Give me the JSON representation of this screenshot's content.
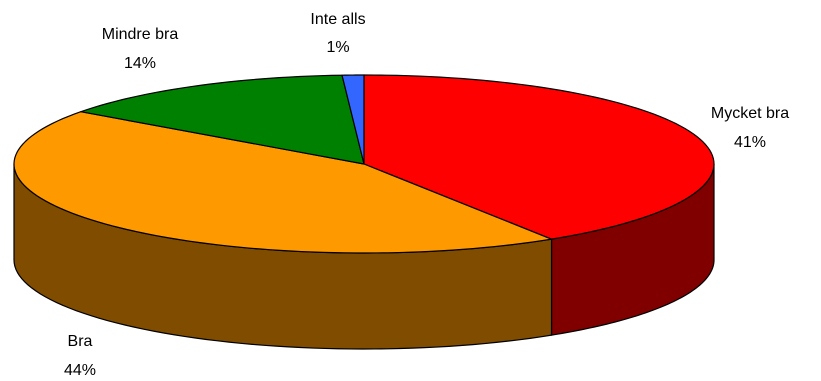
{
  "chart_data": {
    "type": "pie",
    "style": "3d",
    "slices": [
      {
        "label": "Mycket bra",
        "value": 41,
        "value_label": "41%",
        "color": "#FF0000",
        "side_color": "#800000"
      },
      {
        "label": "Bra",
        "value": 44,
        "value_label": "44%",
        "color": "#FF9900",
        "side_color": "#7F4C00"
      },
      {
        "label": "Mindre bra",
        "value": 14,
        "value_label": "14%",
        "color": "#008000",
        "side_color": "#004000"
      },
      {
        "label": "Inte alls",
        "value": 1,
        "value_label": "1%",
        "color": "#3366FF",
        "side_color": "#1A3380"
      }
    ],
    "start_angle_deg": 90,
    "direction": "clockwise",
    "legend": "none"
  }
}
